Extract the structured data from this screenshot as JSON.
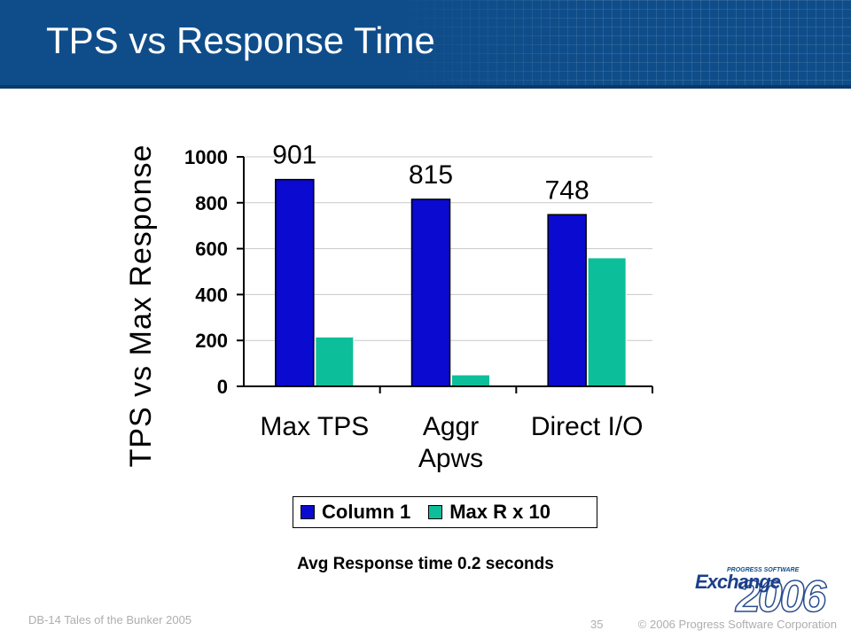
{
  "slide": {
    "title": "TPS vs Response Time",
    "annotation": "Avg Response time 0.2 seconds",
    "footer_left": "DB-14 Tales of the Bunker 2005",
    "page_number": "35",
    "copyright": "© 2006 Progress Software Corporation"
  },
  "logo": {
    "small_text": "PROGRESS SOFTWARE",
    "brand": "Exchange",
    "year": "2006"
  },
  "chart_data": {
    "type": "bar",
    "title": "",
    "xlabel": "",
    "ylabel": "TPS vs Max Response",
    "categories": [
      "Max TPS",
      "Aggr Apws",
      "Direct I/O"
    ],
    "series": [
      {
        "name": "Column 1",
        "values": [
          901,
          815,
          748
        ],
        "color": "#0a0ad0",
        "data_labels": [
          "901",
          "815",
          "748"
        ]
      },
      {
        "name": "Max R x 10",
        "values": [
          215,
          50,
          560
        ],
        "color": "#0dbe9a"
      }
    ],
    "ylim": [
      0,
      1000
    ],
    "yticks": [
      0,
      200,
      400,
      600,
      800,
      1000
    ],
    "grid": true,
    "legend_position": "bottom"
  }
}
